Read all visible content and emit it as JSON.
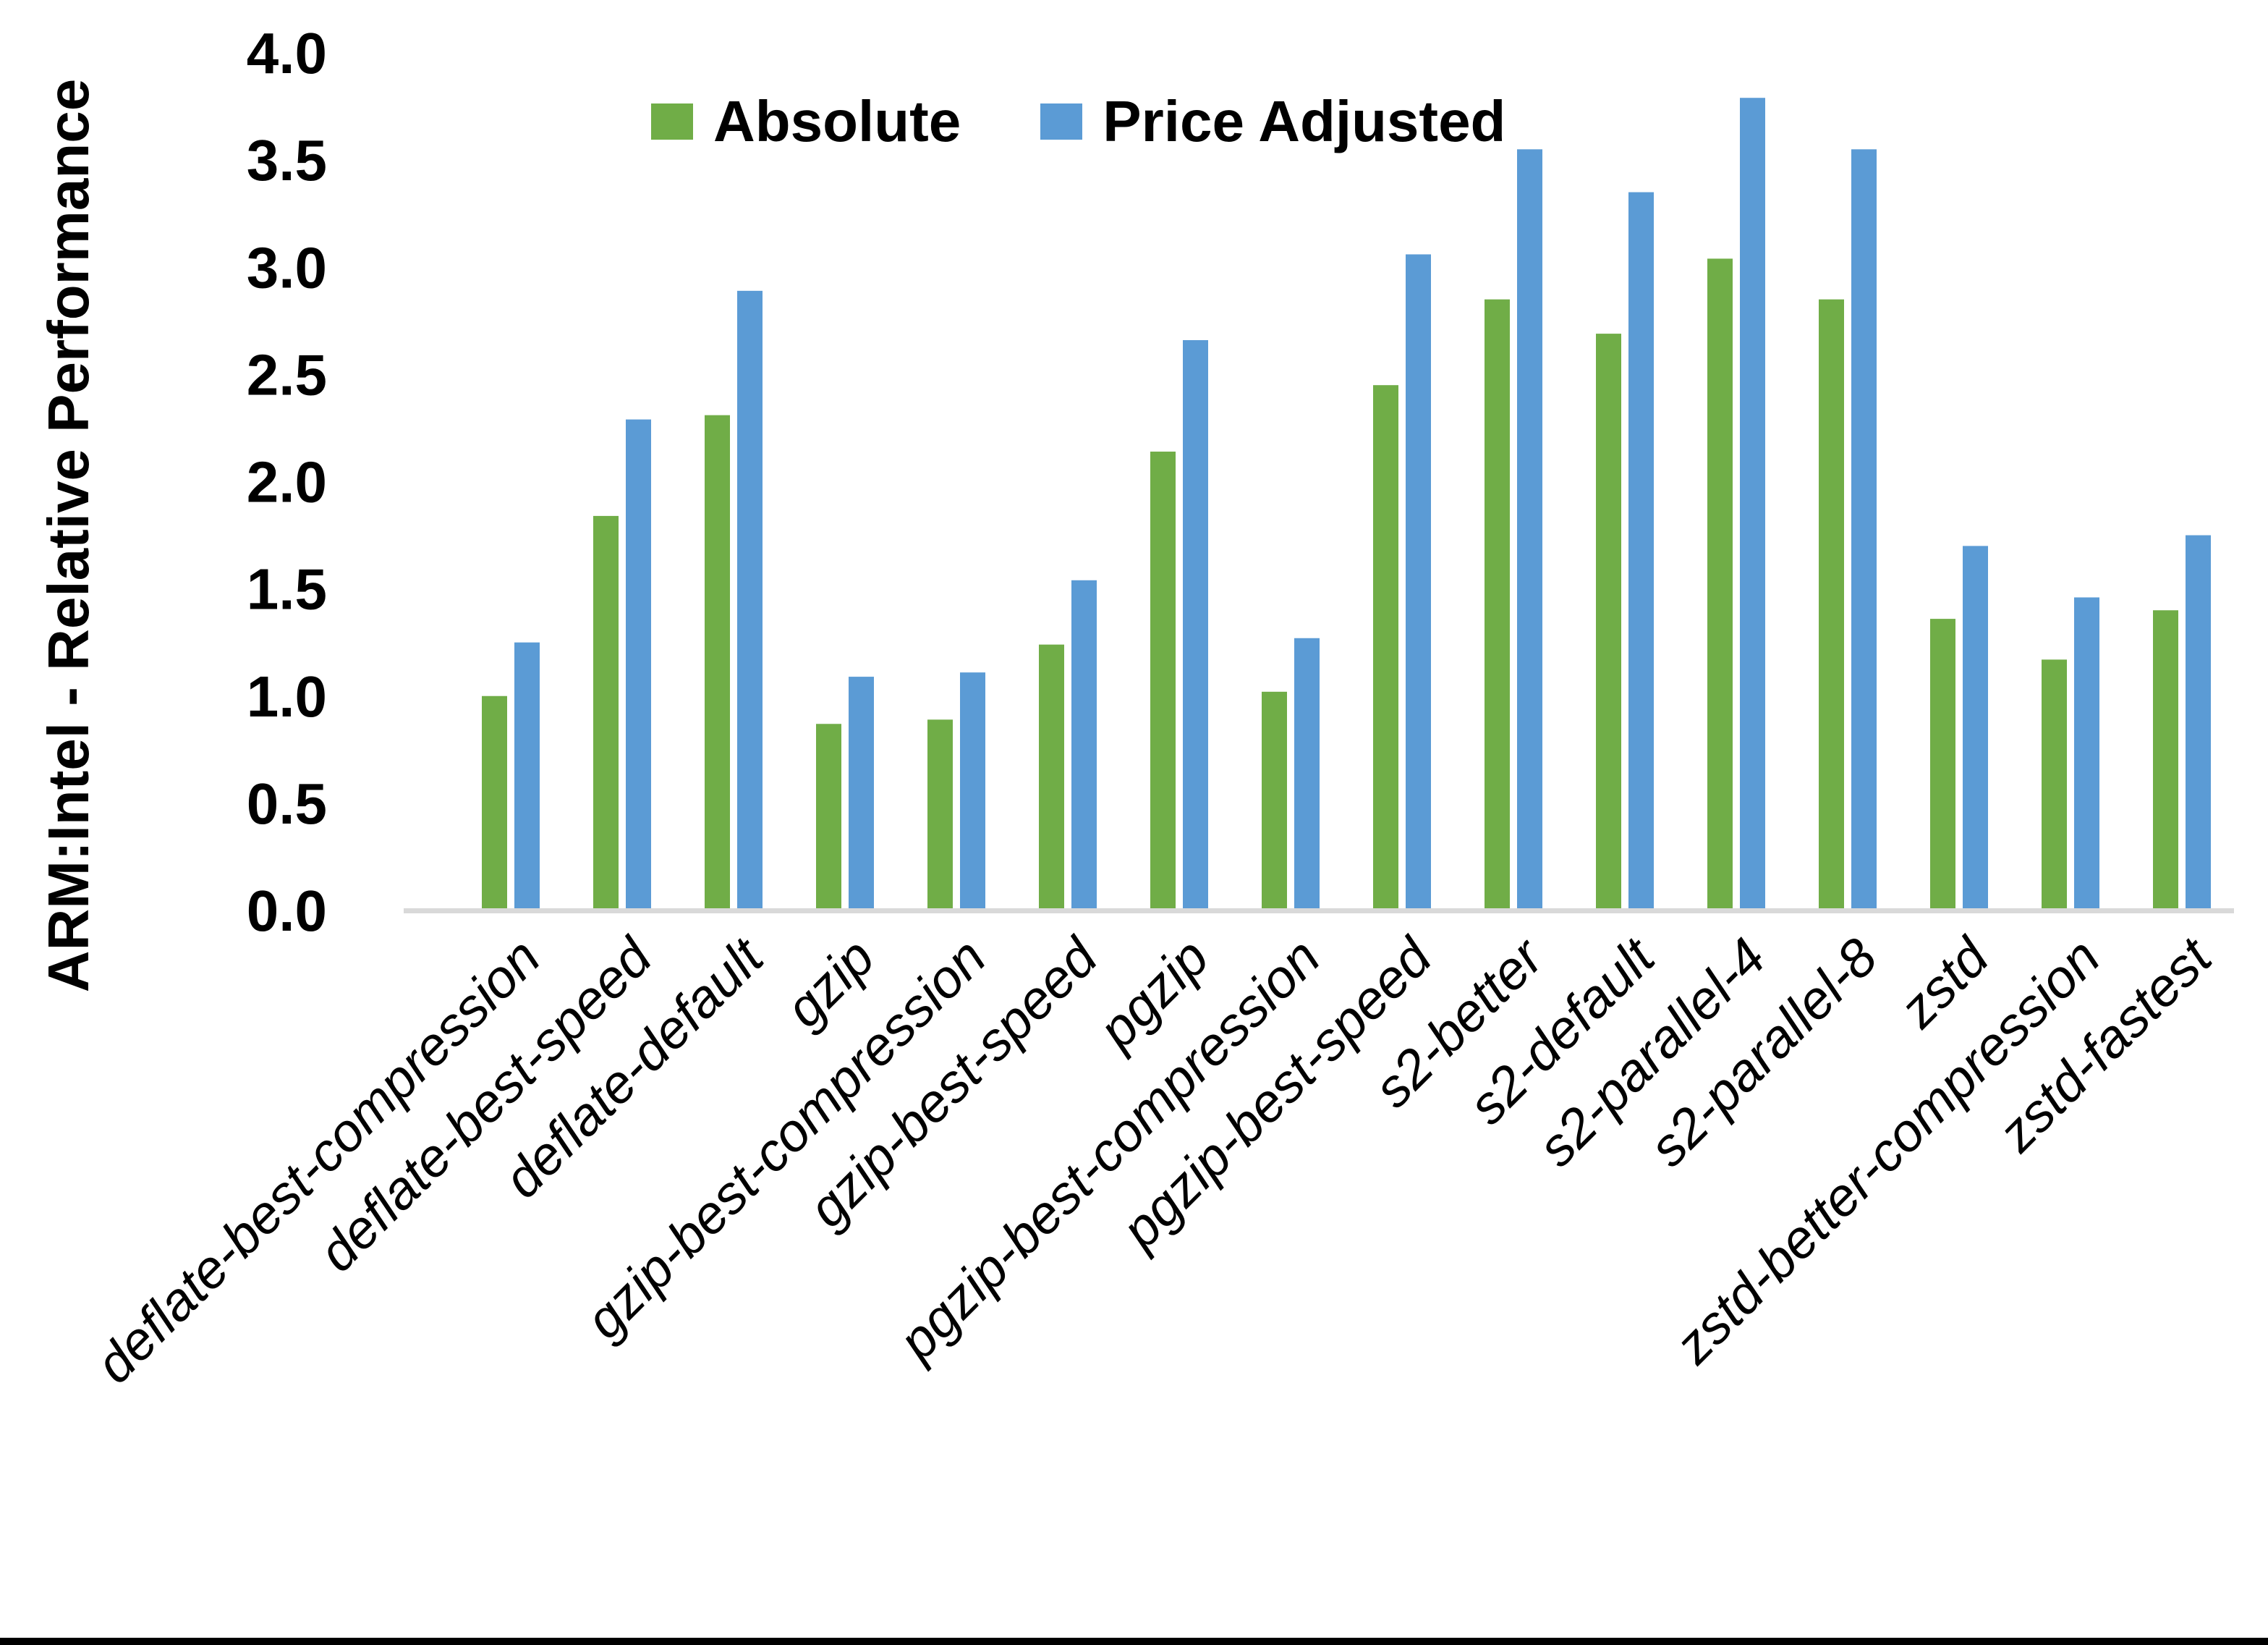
{
  "chart_data": {
    "type": "bar",
    "title": "",
    "xlabel": "",
    "ylabel": "ARM:Intel - Relative Performance",
    "ylim": [
      0.0,
      4.0
    ],
    "ytick_step": 0.5,
    "ytick_labels": [
      "0.0",
      "0.5",
      "1.0",
      "1.5",
      "2.0",
      "2.5",
      "3.0",
      "3.5",
      "4.0"
    ],
    "grid": false,
    "legend_position": "top-center",
    "axis_line_color": "#D9D9D9",
    "text_color": "#000000",
    "background_color": "#FFFFFF",
    "categories": [
      "deflate-best-compression",
      "deflate-best-speed",
      "deflate-default",
      "gzip",
      "gzip-best-compression",
      "gzip-best-speed",
      "pgzip",
      "pgzip-best-compression",
      "pgzip-best-speed",
      "s2-better",
      "s2-default",
      "s2-parallel-4",
      "s2-parallel-8",
      "zstd",
      "zstd-better-compression",
      "zstd-fastest"
    ],
    "series": [
      {
        "name": "Absolute",
        "color": "#70AD47",
        "values": [
          1.0,
          1.84,
          2.31,
          0.87,
          0.89,
          1.24,
          2.14,
          1.02,
          2.45,
          2.85,
          2.69,
          3.04,
          2.85,
          1.36,
          1.17,
          1.4
        ]
      },
      {
        "name": "Price Adjusted",
        "color": "#5B9BD5",
        "values": [
          1.25,
          2.29,
          2.89,
          1.09,
          1.11,
          1.54,
          2.66,
          1.27,
          3.06,
          3.55,
          3.35,
          3.79,
          3.55,
          1.7,
          1.46,
          1.75
        ]
      }
    ]
  }
}
